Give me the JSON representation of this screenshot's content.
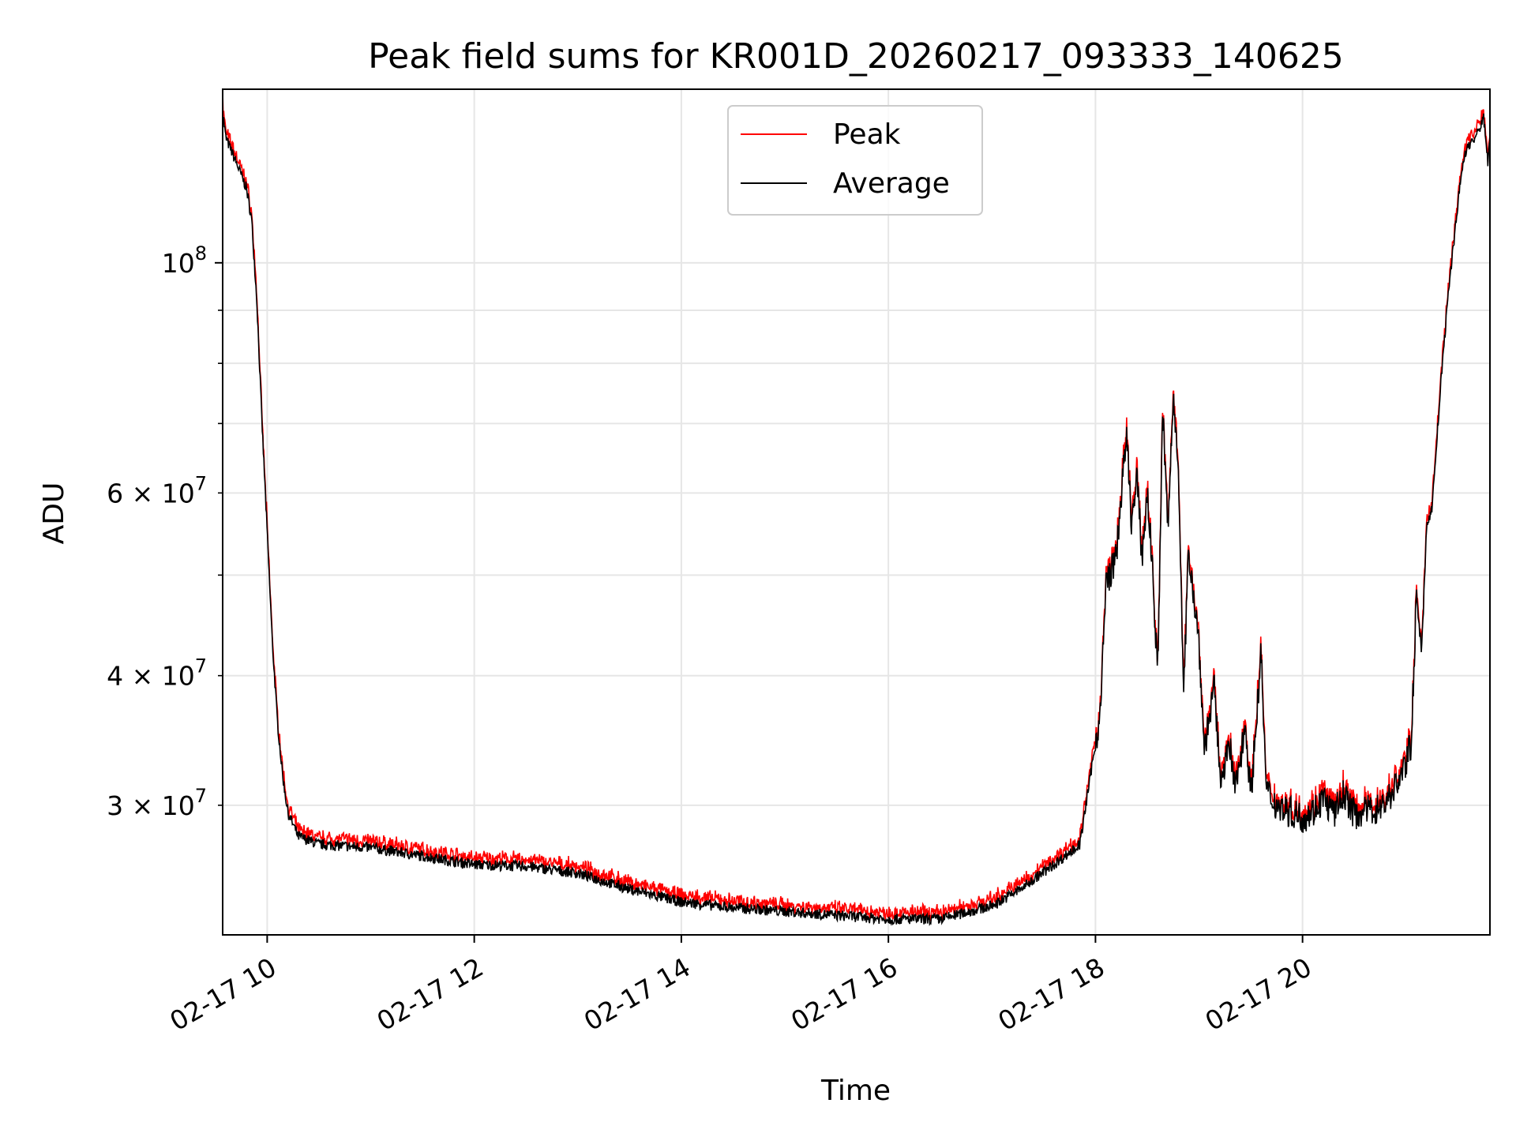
{
  "chart_data": {
    "type": "line",
    "title": "Peak field sums for KR001D_20260217_093333_140625",
    "xlabel": "Time",
    "ylabel": "ADU",
    "yscale": "log",
    "ylim": [
      22500000,
      147000000
    ],
    "xlim_hours": [
      9.57,
      21.81
    ],
    "grid": true,
    "legend_position": "top-center",
    "x_ticks": [
      {
        "hour": 10,
        "label": "02-17 10"
      },
      {
        "hour": 12,
        "label": "02-17 12"
      },
      {
        "hour": 14,
        "label": "02-17 14"
      },
      {
        "hour": 16,
        "label": "02-17 16"
      },
      {
        "hour": 18,
        "label": "02-17 18"
      },
      {
        "hour": 20,
        "label": "02-17 20"
      }
    ],
    "y_major_ticks": [
      {
        "value": 100000000,
        "base": "10",
        "exp": "8"
      }
    ],
    "y_minor_ticks": [
      {
        "value": 30000000,
        "coef": "3",
        "base": "10",
        "exp": "7"
      },
      {
        "value": 40000000,
        "coef": "4",
        "base": "10",
        "exp": "7"
      },
      {
        "value": 60000000,
        "coef": "6",
        "base": "10",
        "exp": "7"
      }
    ],
    "y_minor_unlabeled": [
      50000000,
      70000000,
      80000000,
      90000000
    ],
    "series": [
      {
        "name": "Peak",
        "color": "#ff0000"
      },
      {
        "name": "Average",
        "color": "#000000"
      }
    ],
    "average_points": [
      [
        9.57,
        140000000
      ],
      [
        9.6,
        132000000
      ],
      [
        9.7,
        125000000
      ],
      [
        9.8,
        118000000
      ],
      [
        9.85,
        110000000
      ],
      [
        9.9,
        92000000
      ],
      [
        9.95,
        70000000
      ],
      [
        10.0,
        55000000
      ],
      [
        10.05,
        43000000
      ],
      [
        10.1,
        36000000
      ],
      [
        10.15,
        32000000
      ],
      [
        10.2,
        29500000
      ],
      [
        10.3,
        28000000
      ],
      [
        10.5,
        27500000
      ],
      [
        11.0,
        27300000
      ],
      [
        11.5,
        26800000
      ],
      [
        12.0,
        26300000
      ],
      [
        12.5,
        26200000
      ],
      [
        13.0,
        25800000
      ],
      [
        13.5,
        24900000
      ],
      [
        14.0,
        24200000
      ],
      [
        14.5,
        23900000
      ],
      [
        15.0,
        23700000
      ],
      [
        15.5,
        23500000
      ],
      [
        16.0,
        23300000
      ],
      [
        16.5,
        23300000
      ],
      [
        17.0,
        24000000
      ],
      [
        17.3,
        25000000
      ],
      [
        17.6,
        26300000
      ],
      [
        17.85,
        27500000
      ],
      [
        17.95,
        32000000
      ],
      [
        18.05,
        37000000
      ],
      [
        18.1,
        49000000
      ],
      [
        18.2,
        52000000
      ],
      [
        18.25,
        60000000
      ],
      [
        18.3,
        68000000
      ],
      [
        18.35,
        56000000
      ],
      [
        18.4,
        62000000
      ],
      [
        18.45,
        52000000
      ],
      [
        18.5,
        60000000
      ],
      [
        18.55,
        51000000
      ],
      [
        18.6,
        40000000
      ],
      [
        18.65,
        72000000
      ],
      [
        18.7,
        55000000
      ],
      [
        18.75,
        74000000
      ],
      [
        18.8,
        65000000
      ],
      [
        18.85,
        38000000
      ],
      [
        18.9,
        53000000
      ],
      [
        19.0,
        43000000
      ],
      [
        19.05,
        34000000
      ],
      [
        19.15,
        39000000
      ],
      [
        19.2,
        32000000
      ],
      [
        19.3,
        34000000
      ],
      [
        19.35,
        31000000
      ],
      [
        19.45,
        36000000
      ],
      [
        19.5,
        30500000
      ],
      [
        19.6,
        42000000
      ],
      [
        19.65,
        31000000
      ],
      [
        19.75,
        30000000
      ],
      [
        19.9,
        29500000
      ],
      [
        20.0,
        29200000
      ],
      [
        20.1,
        29600000
      ],
      [
        20.2,
        30500000
      ],
      [
        20.3,
        29400000
      ],
      [
        20.4,
        30800000
      ],
      [
        20.5,
        29400000
      ],
      [
        20.65,
        29700000
      ],
      [
        20.75,
        29800000
      ],
      [
        20.85,
        30700000
      ],
      [
        20.95,
        32000000
      ],
      [
        21.0,
        33000000
      ],
      [
        21.05,
        34500000
      ],
      [
        21.1,
        48000000
      ],
      [
        21.15,
        42000000
      ],
      [
        21.2,
        56000000
      ],
      [
        21.25,
        58000000
      ],
      [
        21.3,
        68000000
      ],
      [
        21.35,
        80000000
      ],
      [
        21.42,
        96000000
      ],
      [
        21.5,
        114000000
      ],
      [
        21.55,
        125000000
      ],
      [
        21.6,
        130000000
      ],
      [
        21.65,
        131000000
      ],
      [
        21.7,
        134000000
      ],
      [
        21.75,
        138000000
      ],
      [
        21.79,
        125000000
      ],
      [
        21.81,
        132000000
      ]
    ]
  }
}
